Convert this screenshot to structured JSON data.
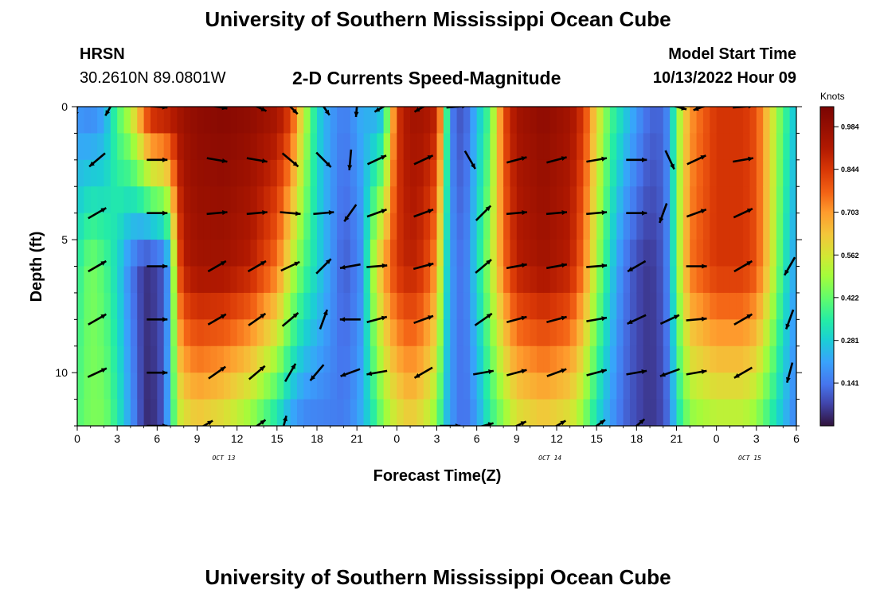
{
  "page": {
    "title": "University of Southern Mississippi Ocean Cube",
    "station": "HRSN",
    "coords": "30.2610N  89.0801W",
    "chart_heading": "2-D Currents Speed-Magnitude",
    "model_label": "Model Start Time",
    "model_time": "10/13/2022 Hour 09",
    "footer_title": "University of Southern Mississippi Ocean Cube"
  },
  "chart_data": {
    "type": "heatmap",
    "title": "2-D Currents Speed-Magnitude",
    "xlabel": "Forecast Time(Z)",
    "ylabel": "Depth (ft)",
    "x_tick_labels": [
      "0",
      "3",
      "6",
      "9",
      "12",
      "15",
      "18",
      "21",
      "0",
      "3",
      "6",
      "9",
      "12",
      "15",
      "18",
      "21",
      "0",
      "3",
      "6"
    ],
    "x_range_hours": [
      0,
      54
    ],
    "day_labels": [
      {
        "label": "OCT 13",
        "hour": 11
      },
      {
        "label": "OCT 14",
        "hour": 35.5
      },
      {
        "label": "OCT 15",
        "hour": 50.5
      }
    ],
    "y_ticks": [
      0,
      5,
      10
    ],
    "ylim": [
      0,
      12
    ],
    "y_inverted": true,
    "colorbar": {
      "title": "Knots",
      "labels": [
        "0.984",
        "0.844",
        "0.703",
        "0.562",
        "0.422",
        "0.281",
        "0.141"
      ],
      "range": [
        0,
        1.05
      ]
    },
    "speed_profile": {
      "hours": [
        0,
        1,
        2,
        3,
        4,
        5,
        5.5,
        6.5,
        7,
        7.5,
        8,
        9,
        11,
        13,
        15,
        16,
        17,
        18,
        19,
        20,
        21,
        21.5,
        22,
        23,
        24,
        25,
        26,
        27,
        27.5,
        28,
        29,
        30,
        31,
        32,
        33,
        35,
        37,
        38,
        39,
        40,
        41,
        42,
        43,
        44,
        44.5,
        45,
        46,
        48,
        50,
        51,
        52,
        53,
        54
      ],
      "surface": [
        0.18,
        0.15,
        0.2,
        0.4,
        0.55,
        0.8,
        0.92,
        0.95,
        0.95,
        0.95,
        0.97,
        1.0,
        1.02,
        1.0,
        0.95,
        0.85,
        0.55,
        0.3,
        0.2,
        0.15,
        0.2,
        0.25,
        0.2,
        0.25,
        0.85,
        0.95,
        0.95,
        0.9,
        0.6,
        0.15,
        0.08,
        0.25,
        0.4,
        0.8,
        0.95,
        1.0,
        0.95,
        0.85,
        0.6,
        0.4,
        0.3,
        0.2,
        0.12,
        0.12,
        0.2,
        0.45,
        0.7,
        0.85,
        0.85,
        0.8,
        0.6,
        0.4,
        0.25
      ],
      "mid": [
        0.35,
        0.45,
        0.4,
        0.3,
        0.15,
        0.05,
        0.05,
        0.1,
        0.25,
        0.75,
        0.9,
        0.95,
        0.95,
        0.9,
        0.75,
        0.55,
        0.4,
        0.3,
        0.2,
        0.1,
        0.15,
        0.2,
        0.45,
        0.7,
        0.85,
        0.9,
        0.85,
        0.7,
        0.4,
        0.2,
        0.12,
        0.3,
        0.5,
        0.75,
        0.9,
        0.95,
        0.9,
        0.75,
        0.5,
        0.3,
        0.15,
        0.08,
        0.05,
        0.1,
        0.2,
        0.45,
        0.75,
        0.85,
        0.85,
        0.8,
        0.6,
        0.35,
        0.2
      ],
      "bottom": [
        0.4,
        0.45,
        0.45,
        0.35,
        0.2,
        0.05,
        0.03,
        0.1,
        0.3,
        0.5,
        0.55,
        0.6,
        0.55,
        0.45,
        0.3,
        0.2,
        0.15,
        0.15,
        0.15,
        0.15,
        0.2,
        0.25,
        0.3,
        0.45,
        0.55,
        0.6,
        0.55,
        0.45,
        0.3,
        0.2,
        0.12,
        0.2,
        0.35,
        0.45,
        0.55,
        0.6,
        0.55,
        0.45,
        0.3,
        0.2,
        0.12,
        0.08,
        0.05,
        0.08,
        0.15,
        0.3,
        0.45,
        0.5,
        0.5,
        0.45,
        0.35,
        0.25,
        0.15
      ]
    },
    "vectors": [
      {
        "hour": 0,
        "depth": 0,
        "dir": 260
      },
      {
        "hour": 2.5,
        "depth": 0,
        "dir": 240
      },
      {
        "hour": 6,
        "depth": 0,
        "dir": -5
      },
      {
        "hour": 10.5,
        "depth": 0,
        "dir": -10
      },
      {
        "hour": 13.5,
        "depth": 0,
        "dir": -25
      },
      {
        "hour": 16,
        "depth": 0,
        "dir": -45
      },
      {
        "hour": 18.5,
        "depth": 0,
        "dir": -55
      },
      {
        "hour": 21,
        "depth": 0,
        "dir": 265
      },
      {
        "hour": 23,
        "depth": 0,
        "dir": 210
      },
      {
        "hour": 26,
        "depth": 0,
        "dir": 210
      },
      {
        "hour": 28.5,
        "depth": 0,
        "dir": 5
      },
      {
        "hour": 45,
        "depth": 0,
        "dir": -15
      },
      {
        "hour": 47,
        "depth": 0,
        "dir": 200
      },
      {
        "hour": 50,
        "depth": 0,
        "dir": 5
      },
      {
        "hour": 1.5,
        "depth": 2,
        "dir": 220
      },
      {
        "hour": 6,
        "depth": 2,
        "dir": 0
      },
      {
        "hour": 10.5,
        "depth": 2,
        "dir": -10
      },
      {
        "hour": 13.5,
        "depth": 2,
        "dir": -10
      },
      {
        "hour": 16,
        "depth": 2,
        "dir": -40
      },
      {
        "hour": 18.5,
        "depth": 2,
        "dir": -45
      },
      {
        "hour": 20.5,
        "depth": 2,
        "dir": 265
      },
      {
        "hour": 22.5,
        "depth": 2,
        "dir": 25
      },
      {
        "hour": 26,
        "depth": 2,
        "dir": 25
      },
      {
        "hour": 29.5,
        "depth": 2,
        "dir": -60
      },
      {
        "hour": 33,
        "depth": 2,
        "dir": 15
      },
      {
        "hour": 36,
        "depth": 2,
        "dir": 15
      },
      {
        "hour": 39,
        "depth": 2,
        "dir": 10
      },
      {
        "hour": 42,
        "depth": 2,
        "dir": 0
      },
      {
        "hour": 44.5,
        "depth": 2,
        "dir": -65
      },
      {
        "hour": 46.5,
        "depth": 2,
        "dir": 25
      },
      {
        "hour": 50,
        "depth": 2,
        "dir": 10
      },
      {
        "hour": 1.5,
        "depth": 4,
        "dir": 30
      },
      {
        "hour": 6,
        "depth": 4,
        "dir": 0
      },
      {
        "hour": 10.5,
        "depth": 4,
        "dir": 5
      },
      {
        "hour": 13.5,
        "depth": 4,
        "dir": 5
      },
      {
        "hour": 16,
        "depth": 4,
        "dir": -5
      },
      {
        "hour": 18.5,
        "depth": 4,
        "dir": 5
      },
      {
        "hour": 20.5,
        "depth": 4,
        "dir": 235
      },
      {
        "hour": 22.5,
        "depth": 4,
        "dir": 20
      },
      {
        "hour": 26,
        "depth": 4,
        "dir": 20
      },
      {
        "hour": 30.5,
        "depth": 4,
        "dir": 45
      },
      {
        "hour": 33,
        "depth": 4,
        "dir": 5
      },
      {
        "hour": 36,
        "depth": 4,
        "dir": 5
      },
      {
        "hour": 39,
        "depth": 4,
        "dir": 5
      },
      {
        "hour": 42,
        "depth": 4,
        "dir": 0
      },
      {
        "hour": 44,
        "depth": 4,
        "dir": 250
      },
      {
        "hour": 46.5,
        "depth": 4,
        "dir": 20
      },
      {
        "hour": 50,
        "depth": 4,
        "dir": 25
      },
      {
        "hour": 1.5,
        "depth": 6,
        "dir": 30
      },
      {
        "hour": 6,
        "depth": 6,
        "dir": 0
      },
      {
        "hour": 10.5,
        "depth": 6,
        "dir": 30
      },
      {
        "hour": 13.5,
        "depth": 6,
        "dir": 30
      },
      {
        "hour": 16,
        "depth": 6,
        "dir": 25
      },
      {
        "hour": 18.5,
        "depth": 6,
        "dir": 45
      },
      {
        "hour": 20.5,
        "depth": 6,
        "dir": 190
      },
      {
        "hour": 22.5,
        "depth": 6,
        "dir": 5
      },
      {
        "hour": 26,
        "depth": 6,
        "dir": 15
      },
      {
        "hour": 30.5,
        "depth": 6,
        "dir": 40
      },
      {
        "hour": 33,
        "depth": 6,
        "dir": 10
      },
      {
        "hour": 36,
        "depth": 6,
        "dir": 10
      },
      {
        "hour": 39,
        "depth": 6,
        "dir": 5
      },
      {
        "hour": 42,
        "depth": 6,
        "dir": 210
      },
      {
        "hour": 46.5,
        "depth": 6,
        "dir": 0
      },
      {
        "hour": 50,
        "depth": 6,
        "dir": 30
      },
      {
        "hour": 53.5,
        "depth": 6,
        "dir": 240
      },
      {
        "hour": 1.5,
        "depth": 8,
        "dir": 30
      },
      {
        "hour": 6,
        "depth": 8,
        "dir": 0
      },
      {
        "hour": 10.5,
        "depth": 8,
        "dir": 30
      },
      {
        "hour": 13.5,
        "depth": 8,
        "dir": 35
      },
      {
        "hour": 16,
        "depth": 8,
        "dir": 40
      },
      {
        "hour": 18.5,
        "depth": 8,
        "dir": 70
      },
      {
        "hour": 20.5,
        "depth": 8,
        "dir": 180
      },
      {
        "hour": 22.5,
        "depth": 8,
        "dir": 15
      },
      {
        "hour": 26,
        "depth": 8,
        "dir": 20
      },
      {
        "hour": 30.5,
        "depth": 8,
        "dir": 35
      },
      {
        "hour": 33,
        "depth": 8,
        "dir": 15
      },
      {
        "hour": 36,
        "depth": 8,
        "dir": 15
      },
      {
        "hour": 39,
        "depth": 8,
        "dir": 10
      },
      {
        "hour": 42,
        "depth": 8,
        "dir": 205
      },
      {
        "hour": 44.5,
        "depth": 8,
        "dir": 25
      },
      {
        "hour": 46.5,
        "depth": 8,
        "dir": 5
      },
      {
        "hour": 50,
        "depth": 8,
        "dir": 30
      },
      {
        "hour": 53.5,
        "depth": 8,
        "dir": 250
      },
      {
        "hour": 1.5,
        "depth": 10,
        "dir": 25
      },
      {
        "hour": 6,
        "depth": 10,
        "dir": 0
      },
      {
        "hour": 10.5,
        "depth": 10,
        "dir": 35
      },
      {
        "hour": 13.5,
        "depth": 10,
        "dir": 40
      },
      {
        "hour": 16,
        "depth": 10,
        "dir": 60
      },
      {
        "hour": 18,
        "depth": 10,
        "dir": 230
      },
      {
        "hour": 20.5,
        "depth": 10,
        "dir": 200
      },
      {
        "hour": 22.5,
        "depth": 10,
        "dir": 190
      },
      {
        "hour": 26,
        "depth": 10,
        "dir": 210
      },
      {
        "hour": 30.5,
        "depth": 10,
        "dir": 10
      },
      {
        "hour": 33,
        "depth": 10,
        "dir": 15
      },
      {
        "hour": 36,
        "depth": 10,
        "dir": 20
      },
      {
        "hour": 39,
        "depth": 10,
        "dir": 15
      },
      {
        "hour": 42,
        "depth": 10,
        "dir": 10
      },
      {
        "hour": 44.5,
        "depth": 10,
        "dir": 200
      },
      {
        "hour": 46.5,
        "depth": 10,
        "dir": 10
      },
      {
        "hour": 50,
        "depth": 10,
        "dir": 210
      },
      {
        "hour": 53.5,
        "depth": 10,
        "dir": 255
      },
      {
        "hour": 6,
        "depth": 12,
        "dir": 0
      },
      {
        "hour": 9.5,
        "depth": 12,
        "dir": 30
      },
      {
        "hour": 13.5,
        "depth": 12,
        "dir": 35
      },
      {
        "hour": 15.5,
        "depth": 12,
        "dir": 75
      },
      {
        "hour": 28,
        "depth": 12,
        "dir": 0
      },
      {
        "hour": 30.5,
        "depth": 12,
        "dir": 15
      },
      {
        "hour": 33,
        "depth": 12,
        "dir": 25
      },
      {
        "hour": 36,
        "depth": 12,
        "dir": 30
      },
      {
        "hour": 39,
        "depth": 12,
        "dir": 35
      },
      {
        "hour": 42,
        "depth": 12,
        "dir": 40
      }
    ]
  }
}
